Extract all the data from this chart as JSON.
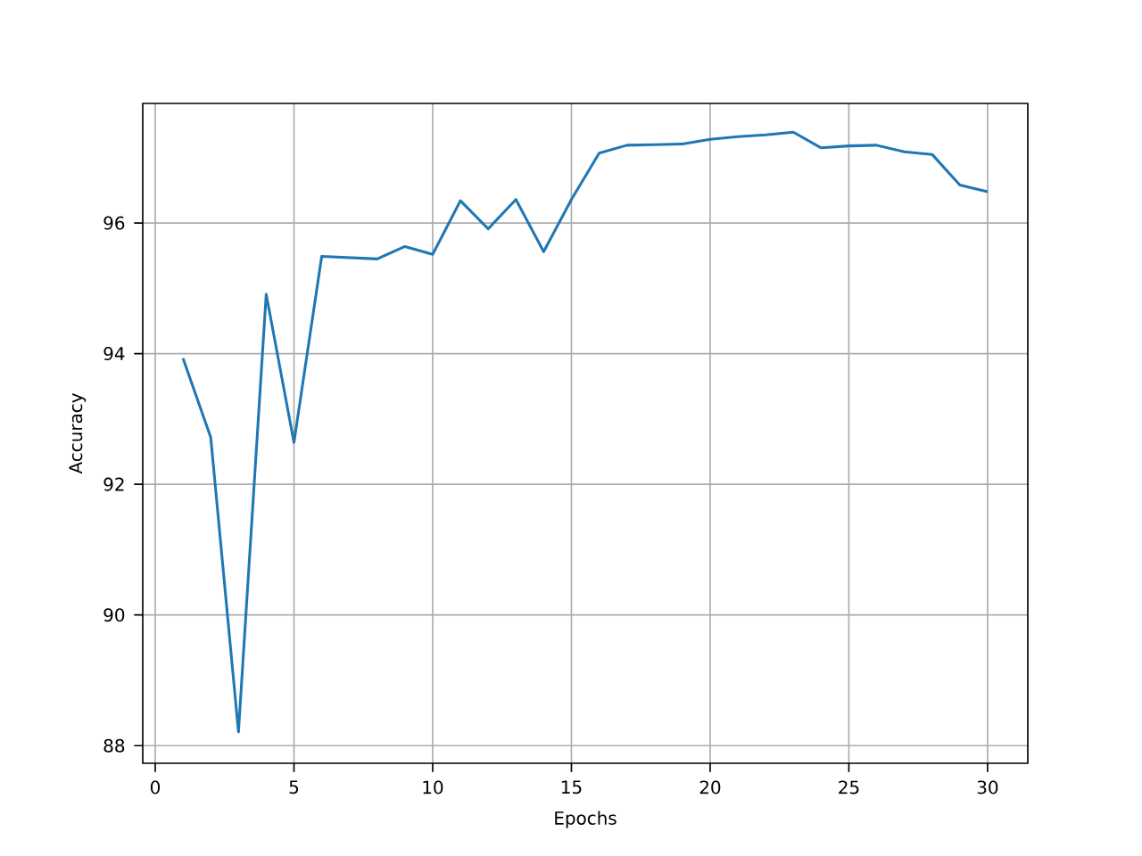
{
  "chart_data": {
    "type": "line",
    "xlabel": "Epochs",
    "ylabel": "Accuracy",
    "x": [
      1,
      2,
      3,
      4,
      5,
      6,
      7,
      8,
      9,
      10,
      11,
      12,
      13,
      14,
      15,
      16,
      17,
      18,
      19,
      20,
      21,
      22,
      23,
      24,
      25,
      26,
      27,
      28,
      29,
      30
    ],
    "series": [
      {
        "color": "#1f77b4",
        "values": [
          93.93,
          92.72,
          88.21,
          94.91,
          92.64,
          95.49,
          95.47,
          95.45,
          95.64,
          95.52,
          96.34,
          95.91,
          96.36,
          95.56,
          96.36,
          97.07,
          97.19,
          97.2,
          97.21,
          97.28,
          97.32,
          97.35,
          97.39,
          97.15,
          97.18,
          97.19,
          97.09,
          97.05,
          96.58,
          96.48
        ]
      }
    ],
    "xlim": [
      -0.45,
      31.45
    ],
    "ylim": [
      87.73,
      97.83
    ],
    "xticks": [
      0,
      5,
      10,
      15,
      20,
      25,
      30
    ],
    "yticks": [
      88,
      90,
      92,
      94,
      96
    ],
    "grid": true,
    "line_style": "solid"
  }
}
